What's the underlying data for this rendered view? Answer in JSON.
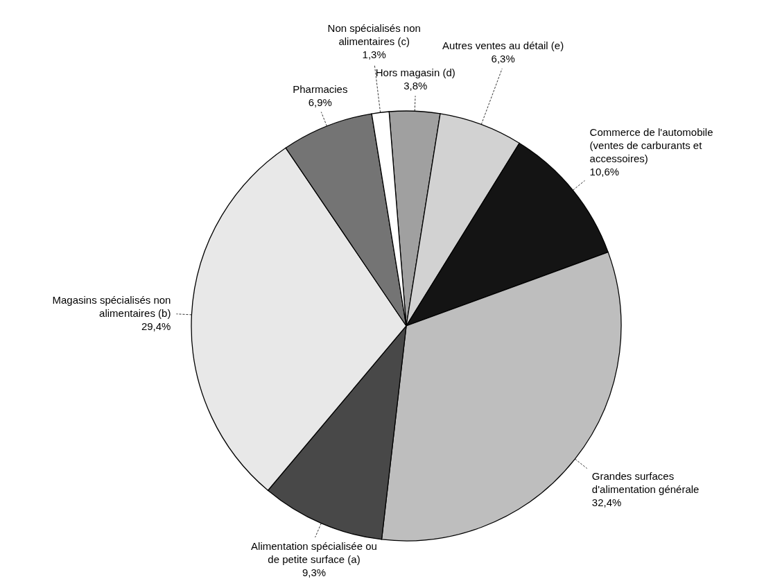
{
  "chart_data": {
    "type": "pie",
    "categories": [
      "Hors magasin (d)",
      "Autres ventes au détail (e)",
      "Commerce de l'automobile (ventes de carburants et accessoires)",
      "Grandes surfaces d'alimentation générale",
      "Alimentation spécialisée ou de petite surface (a)",
      "Magasins spécialisés non alimentaires (b)",
      "Pharmacies",
      "Non spécialisés non alimentaires (c)"
    ],
    "values": [
      3.8,
      6.3,
      10.6,
      32.4,
      9.3,
      29.4,
      6.9,
      1.3
    ],
    "value_labels": [
      "3,8%",
      "6,3%",
      "10,6%",
      "32,4%",
      "9,3%",
      "29,4%",
      "6,9%",
      "1,3%"
    ],
    "colors": [
      "#a0a0a0",
      "#d2d2d2",
      "#141414",
      "#bebebe",
      "#484848",
      "#e8e8e8",
      "#747474",
      "#ffffff"
    ]
  }
}
